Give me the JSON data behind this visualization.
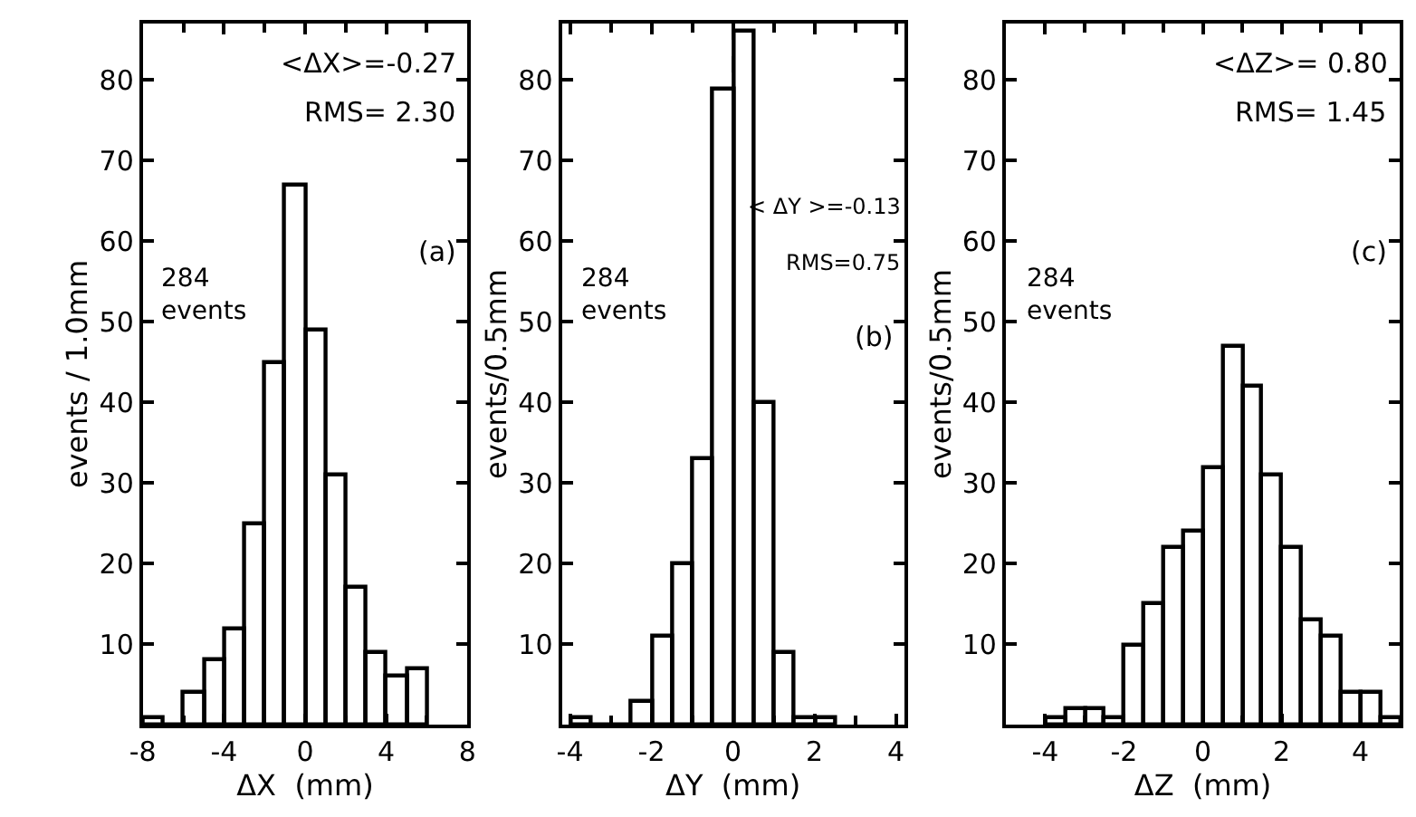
{
  "chart_data": [
    {
      "type": "histogram",
      "bins": [
        -8,
        -7,
        -6,
        -5,
        -4,
        -3,
        -2,
        -1,
        0,
        1,
        2,
        3,
        4,
        5,
        6
      ],
      "values": [
        1,
        0,
        4,
        8,
        12,
        25,
        45,
        67,
        49,
        31,
        17,
        9,
        6,
        7
      ],
      "color": "#000000",
      "xlim": [
        -8,
        8
      ],
      "xticks": [
        -8,
        -4,
        0,
        4,
        8
      ],
      "ylim": [
        0,
        87
      ],
      "yticks": [
        10,
        20,
        30,
        40,
        50,
        60,
        70,
        80
      ],
      "xlabel": "ΔX  (mm)",
      "ylabel": "events / 1.0mm",
      "annotations": [
        "<ΔX>=-0.27",
        "RMS= 2.30",
        "284\nevents",
        "(a)"
      ]
    },
    {
      "type": "histogram",
      "bins": [
        -4,
        -3.5,
        -3,
        -2.5,
        -2,
        -1.5,
        -1,
        -0.5,
        0,
        0.5,
        1,
        1.5,
        2,
        2.5
      ],
      "values": [
        1,
        0,
        0,
        3,
        11,
        20,
        33,
        79,
        86,
        40,
        9,
        1,
        1
      ],
      "color": "#000000",
      "xlim": [
        -4.2,
        4.2
      ],
      "xticks": [
        -4,
        -2,
        0,
        2,
        4
      ],
      "ylim": [
        0,
        87
      ],
      "yticks": [
        10,
        20,
        30,
        40,
        50,
        60,
        70,
        80
      ],
      "xlabel": "ΔY  (mm)",
      "ylabel": "events/0.5mm",
      "annotations": [
        "< ΔY >=-0.13",
        "RMS=0.75",
        "284\nevents",
        "(b)"
      ],
      "ref_lines": [
        {
          "axis": "x",
          "value": 0,
          "line_style": "dashed",
          "color": "#000000"
        }
      ]
    },
    {
      "type": "histogram",
      "bins": [
        -4,
        -3.5,
        -3,
        -2.5,
        -2,
        -1.5,
        -1,
        -0.5,
        0,
        0.5,
        1,
        1.5,
        2,
        2.5,
        3,
        3.5,
        4,
        4.5,
        5
      ],
      "values": [
        1,
        2,
        2,
        1,
        10,
        15,
        22,
        24,
        32,
        47,
        42,
        31,
        22,
        13,
        11,
        4,
        4,
        1
      ],
      "color": "#000000",
      "xlim": [
        -5,
        5
      ],
      "xticks": [
        -4,
        -2,
        0,
        2,
        4
      ],
      "ylim": [
        0,
        87
      ],
      "yticks": [
        10,
        20,
        30,
        40,
        50,
        60,
        70,
        80
      ],
      "xlabel": "ΔZ  (mm)",
      "ylabel": "events/0.5mm",
      "annotations": [
        "<ΔZ>= 0.80",
        "RMS= 1.45",
        "284\nevents",
        "(c)"
      ]
    }
  ]
}
